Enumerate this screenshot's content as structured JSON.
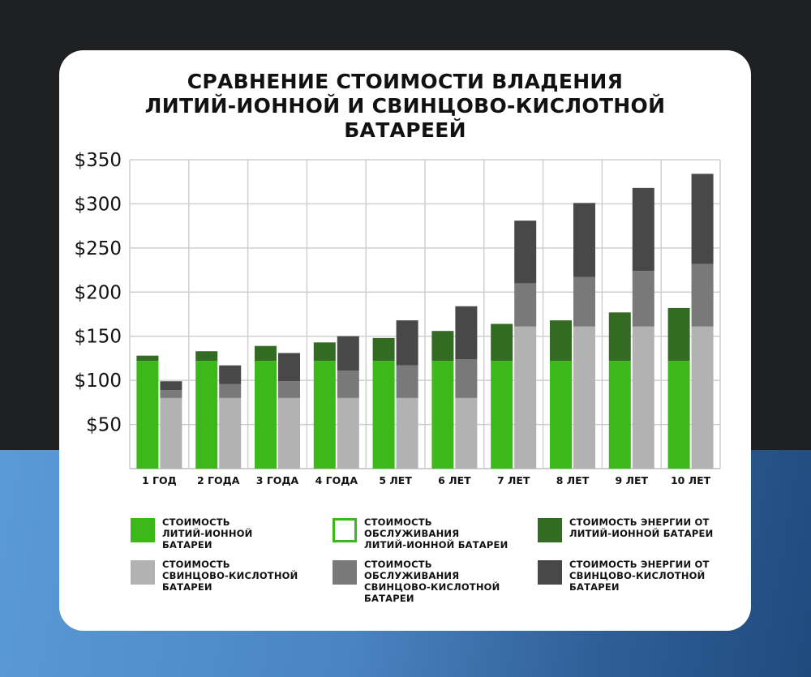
{
  "title": "СРАВНЕНИЕ СТОИМОСТИ ВЛАДЕНИЯ\nЛИТИЙ-ИОННОЙ И СВИНЦОВО-КИСЛОТНОЙ\nБАТАРЕЕЙ",
  "colors": {
    "li_cost": "#3cb81a",
    "li_maint": "#ffffff",
    "li_maint_border": "#3cb81a",
    "li_energy": "#336b22",
    "pb_cost": "#b2b2b2",
    "pb_maint": "#797979",
    "pb_energy": "#484848"
  },
  "legend": [
    {
      "key": "li_cost",
      "label": "СТОИМОСТЬ\nЛИТИЙ-ИОННОЙ\nБАТАРЕИ"
    },
    {
      "key": "li_maint",
      "label": "СТОИМОСТЬ\nОБСЛУЖИВАНИЯ\nЛИТИЙ-ИОННОЙ БАТАРЕИ"
    },
    {
      "key": "li_energy",
      "label": "СТОИМОСТЬ ЭНЕРГИИ ОТ\nЛИТИЙ-ИОННОЙ БАТАРЕИ"
    },
    {
      "key": "pb_cost",
      "label": "СТОИМОСТЬ\nСВИНЦОВО-КИСЛОТНОЙ\nБАТАРЕИ"
    },
    {
      "key": "pb_maint",
      "label": "СТОИМОСТЬ\nОБСЛУЖИВАНИЯ\nСВИНЦОВО-КИСЛОТНОЙ\nБАТАРЕИ"
    },
    {
      "key": "pb_energy",
      "label": "СТОИМОСТЬ ЭНЕРГИИ ОТ\nСВИНЦОВО-КИСЛОТНОЙ\nБАТАРЕИ"
    }
  ],
  "chart_data": {
    "type": "bar",
    "stacked": true,
    "grouped": true,
    "grid": true,
    "categories": [
      "1 ГОД",
      "2 ГОДА",
      "3 ГОДА",
      "4 ГОДА",
      "5 ЛЕТ",
      "6 ЛЕТ",
      "7 ЛЕТ",
      "8 ЛЕТ",
      "9 ЛЕТ",
      "10 ЛЕТ"
    ],
    "ylim": [
      0,
      350
    ],
    "yticks": [
      50,
      100,
      150,
      200,
      250,
      300,
      350
    ],
    "ytick_labels": [
      "$50",
      "$100",
      "$150",
      "$200",
      "$250",
      "$300",
      "$350"
    ],
    "groups": [
      {
        "key": "li",
        "series": [
          {
            "key": "li_cost",
            "values": [
              122,
              122,
              122,
              122,
              122,
              122,
              122,
              122,
              122,
              122
            ]
          },
          {
            "key": "li_energy",
            "values": [
              6,
              11,
              17,
              21,
              26,
              34,
              42,
              46,
              55,
              60
            ]
          }
        ]
      },
      {
        "key": "pb",
        "series": [
          {
            "key": "pb_cost",
            "values": [
              80,
              80,
              80,
              80,
              80,
              80,
              161,
              161,
              161,
              161
            ]
          },
          {
            "key": "pb_maint",
            "values": [
              9,
              16,
              19,
              31,
              37,
              44,
              49,
              56,
              63,
              71
            ]
          },
          {
            "key": "pb_energy",
            "values": [
              10,
              21,
              32,
              39,
              51,
              60,
              71,
              84,
              94,
              102
            ]
          }
        ]
      }
    ]
  }
}
